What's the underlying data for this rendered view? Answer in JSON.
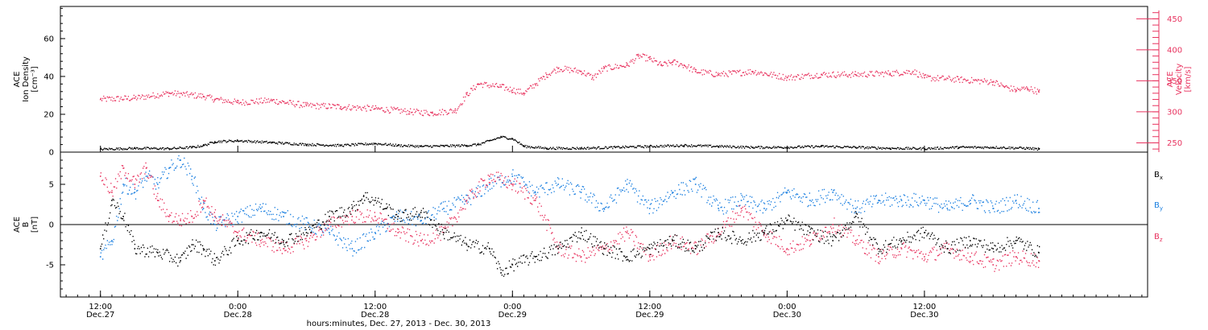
{
  "colors": {
    "black": "#000000",
    "pink": "#e8335f",
    "blue": "#1a7fe0"
  },
  "chart_data": [
    {
      "type": "scatter",
      "panel": "top",
      "ylabel_left": [
        "ACE",
        "Ion Density",
        "[cm⁻³]"
      ],
      "ylabel_right": [
        "ACE",
        "Velocity",
        "[km/s]"
      ],
      "ylim_left": [
        0,
        77
      ],
      "ylim_right": [
        235,
        470
      ],
      "yticks_left": [
        "0",
        "20",
        "40",
        "60"
      ],
      "yticks_right": [
        "250",
        "300",
        "350",
        "400",
        "450"
      ],
      "series": [
        {
          "axis": "left",
          "color": "black",
          "points": [
            [
              0,
              1.5
            ],
            [
              3,
              2
            ],
            [
              6,
              1.8
            ],
            [
              8,
              2.5
            ],
            [
              9,
              3.5
            ],
            [
              10,
              5.5
            ],
            [
              12,
              6
            ],
            [
              15,
              5
            ],
            [
              18,
              4
            ],
            [
              21,
              3.5
            ],
            [
              24,
              4.5
            ],
            [
              26,
              3.5
            ],
            [
              28,
              3
            ],
            [
              30,
              3.2
            ],
            [
              32,
              3.5
            ],
            [
              33,
              4
            ],
            [
              34,
              6
            ],
            [
              35,
              8
            ],
            [
              36,
              7
            ],
            [
              37,
              3
            ],
            [
              39,
              2
            ],
            [
              42,
              2
            ],
            [
              45,
              2.5
            ],
            [
              48,
              3
            ],
            [
              51,
              3.5
            ],
            [
              54,
              3
            ],
            [
              57,
              2.5
            ],
            [
              60,
              2.5
            ],
            [
              63,
              3
            ],
            [
              66,
              2.5
            ],
            [
              69,
              2
            ],
            [
              72,
              1.8
            ],
            [
              75,
              2.5
            ],
            [
              78,
              2.5
            ],
            [
              81,
              2
            ],
            [
              82,
              1.5
            ]
          ]
        },
        {
          "axis": "right",
          "color": "pink",
          "points": [
            [
              0,
              320
            ],
            [
              3,
              322
            ],
            [
              6,
              330
            ],
            [
              9,
              325
            ],
            [
              10,
              320
            ],
            [
              12,
              315
            ],
            [
              15,
              318
            ],
            [
              18,
              310
            ],
            [
              21,
              308
            ],
            [
              24,
              305
            ],
            [
              27,
              300
            ],
            [
              29,
              298
            ],
            [
              31,
              302
            ],
            [
              32,
              328
            ],
            [
              33,
              345
            ],
            [
              35,
              340
            ],
            [
              36,
              335
            ],
            [
              37,
              330
            ],
            [
              38,
              345
            ],
            [
              39,
              360
            ],
            [
              40,
              370
            ],
            [
              42,
              365
            ],
            [
              43,
              355
            ],
            [
              44,
              370
            ],
            [
              46,
              375
            ],
            [
              47,
              390
            ],
            [
              48,
              385
            ],
            [
              49,
              375
            ],
            [
              50,
              380
            ],
            [
              51,
              375
            ],
            [
              52,
              365
            ],
            [
              54,
              360
            ],
            [
              57,
              365
            ],
            [
              60,
              355
            ],
            [
              63,
              360
            ],
            [
              66,
              360
            ],
            [
              69,
              362
            ],
            [
              71,
              365
            ],
            [
              72,
              355
            ],
            [
              75,
              352
            ],
            [
              78,
              348
            ],
            [
              79,
              340
            ],
            [
              80,
              335
            ],
            [
              81,
              338
            ],
            [
              82,
              332
            ]
          ]
        }
      ]
    },
    {
      "type": "scatter",
      "panel": "bottom",
      "ylabel_left": [
        "ACE",
        "B",
        "[nT]"
      ],
      "ylim": [
        -9,
        9
      ],
      "yticks": [
        "-5",
        "0",
        "5"
      ],
      "legend": [
        "Bx",
        "By",
        "Bz"
      ],
      "legend_placement": "right",
      "series": [
        {
          "name": "Bx",
          "color": "black",
          "points": [
            [
              0,
              -3
            ],
            [
              1,
              3
            ],
            [
              2,
              1
            ],
            [
              3,
              -3
            ],
            [
              5,
              -3.5
            ],
            [
              7,
              -4.5
            ],
            [
              8,
              -2.5
            ],
            [
              9,
              -3
            ],
            [
              10,
              -4.5
            ],
            [
              12,
              -2
            ],
            [
              14,
              -1
            ],
            [
              16,
              -2
            ],
            [
              18,
              -1
            ],
            [
              20,
              1
            ],
            [
              22,
              2
            ],
            [
              23,
              3.5
            ],
            [
              24,
              3
            ],
            [
              25,
              2
            ],
            [
              26,
              1
            ],
            [
              28,
              1.5
            ],
            [
              30,
              -1
            ],
            [
              32,
              -2.5
            ],
            [
              34,
              -3
            ],
            [
              35,
              -6
            ],
            [
              36,
              -5
            ],
            [
              38,
              -4
            ],
            [
              40,
              -3
            ],
            [
              42,
              -1
            ],
            [
              44,
              -3
            ],
            [
              46,
              -4
            ],
            [
              48,
              -3
            ],
            [
              50,
              -2
            ],
            [
              52,
              -3
            ],
            [
              54,
              -1
            ],
            [
              56,
              -2
            ],
            [
              58,
              -1
            ],
            [
              60,
              0.5
            ],
            [
              62,
              -1
            ],
            [
              64,
              -2
            ],
            [
              66,
              1
            ],
            [
              68,
              -3
            ],
            [
              70,
              -2
            ],
            [
              72,
              -1
            ],
            [
              74,
              -3
            ],
            [
              76,
              -2
            ],
            [
              78,
              -3
            ],
            [
              80,
              -2
            ],
            [
              82,
              -3.5
            ]
          ]
        },
        {
          "name": "By",
          "color": "blue",
          "points": [
            [
              0,
              -4
            ],
            [
              1,
              -2
            ],
            [
              2,
              5
            ],
            [
              3,
              4
            ],
            [
              4,
              6
            ],
            [
              5,
              5
            ],
            [
              6,
              7
            ],
            [
              7,
              8
            ],
            [
              8,
              6
            ],
            [
              9,
              2
            ],
            [
              10,
              0
            ],
            [
              12,
              1
            ],
            [
              14,
              2
            ],
            [
              16,
              1
            ],
            [
              18,
              0
            ],
            [
              20,
              -1
            ],
            [
              22,
              -3
            ],
            [
              24,
              -1
            ],
            [
              26,
              1
            ],
            [
              28,
              0.5
            ],
            [
              30,
              2
            ],
            [
              32,
              3
            ],
            [
              34,
              5
            ],
            [
              36,
              6
            ],
            [
              38,
              4
            ],
            [
              40,
              5
            ],
            [
              42,
              4
            ],
            [
              44,
              2
            ],
            [
              46,
              5
            ],
            [
              48,
              2
            ],
            [
              50,
              4
            ],
            [
              52,
              5
            ],
            [
              54,
              2
            ],
            [
              56,
              3
            ],
            [
              58,
              2
            ],
            [
              60,
              4
            ],
            [
              62,
              3
            ],
            [
              64,
              4
            ],
            [
              66,
              2
            ],
            [
              68,
              3
            ],
            [
              70,
              3
            ],
            [
              72,
              3
            ],
            [
              74,
              2
            ],
            [
              76,
              3
            ],
            [
              78,
              2
            ],
            [
              80,
              3
            ],
            [
              82,
              2
            ]
          ]
        },
        {
          "name": "Bz",
          "color": "pink",
          "points": [
            [
              0,
              6
            ],
            [
              1,
              4
            ],
            [
              2,
              7
            ],
            [
              3,
              5
            ],
            [
              4,
              7
            ],
            [
              5,
              3
            ],
            [
              6,
              1
            ],
            [
              7,
              0.5
            ],
            [
              8,
              1
            ],
            [
              9,
              3
            ],
            [
              10,
              1
            ],
            [
              12,
              -1
            ],
            [
              14,
              -2
            ],
            [
              16,
              -3
            ],
            [
              18,
              -2
            ],
            [
              20,
              0
            ],
            [
              22,
              1
            ],
            [
              24,
              1
            ],
            [
              26,
              -1
            ],
            [
              28,
              -2
            ],
            [
              30,
              -1
            ],
            [
              32,
              3
            ],
            [
              34,
              6
            ],
            [
              36,
              5
            ],
            [
              38,
              3
            ],
            [
              40,
              -3
            ],
            [
              42,
              -4
            ],
            [
              44,
              -3
            ],
            [
              46,
              -1
            ],
            [
              48,
              -4
            ],
            [
              50,
              -2
            ],
            [
              52,
              -3
            ],
            [
              54,
              -1
            ],
            [
              56,
              2
            ],
            [
              58,
              -1
            ],
            [
              60,
              -3
            ],
            [
              62,
              -2
            ],
            [
              64,
              0
            ],
            [
              66,
              -2
            ],
            [
              68,
              -4
            ],
            [
              70,
              -3
            ],
            [
              72,
              -4
            ],
            [
              74,
              -3
            ],
            [
              76,
              -4
            ],
            [
              78,
              -5
            ],
            [
              80,
              -4
            ],
            [
              82,
              -4.5
            ]
          ]
        }
      ]
    }
  ],
  "x_axis": {
    "range_hours": [
      -3.5,
      91.5
    ],
    "tick_labels": [
      {
        "time": "12:00",
        "date": "Dec.27"
      },
      {
        "time": "0:00",
        "date": "Dec.28"
      },
      {
        "time": "12:00",
        "date": "Dec.28"
      },
      {
        "time": "0:00",
        "date": "Dec.29"
      },
      {
        "time": "12:00",
        "date": "Dec.29"
      },
      {
        "time": "0:00",
        "date": "Dec.30"
      },
      {
        "time": "12:00",
        "date": "Dec.30"
      }
    ],
    "xlabel": "hours:minutes, Dec. 27, 2013 - Dec. 30, 2013"
  }
}
